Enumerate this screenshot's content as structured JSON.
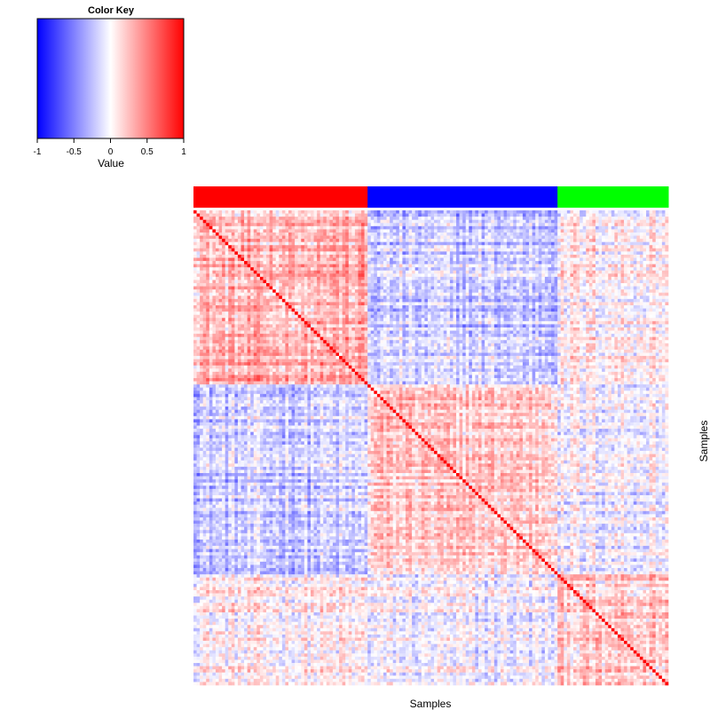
{
  "chart_data": {
    "type": "heatmap",
    "color_key": {
      "title": "Color Key",
      "xlabel": "Value",
      "range": [
        -1,
        1
      ],
      "ticks": [
        "-1",
        "-0.5",
        "0",
        "0.5",
        "1"
      ],
      "tick_values": [
        -1,
        -0.5,
        0,
        0.5,
        1
      ],
      "colors": {
        "low": "#0000ff",
        "mid": "#ffffff",
        "high": "#ff0000"
      }
    },
    "xlabel": "Samples",
    "ylabel": "Samples",
    "n_samples": 150,
    "groups": [
      {
        "color": "#ff0000",
        "size": 55,
        "internal_mean": 0.3
      },
      {
        "color": "#0000ff",
        "size": 60,
        "internal_mean": 0.2
      },
      {
        "color": "#00ff00",
        "size": 35,
        "internal_mean": 0.2
      }
    ],
    "between_group_means": [
      [
        0.3,
        -0.2,
        0.05
      ],
      [
        -0.2,
        0.2,
        -0.05
      ],
      [
        0.05,
        -0.05,
        0.2
      ]
    ],
    "diagonal_value": 1.0,
    "cells_note": "Sample-to-sample correlation matrix"
  }
}
